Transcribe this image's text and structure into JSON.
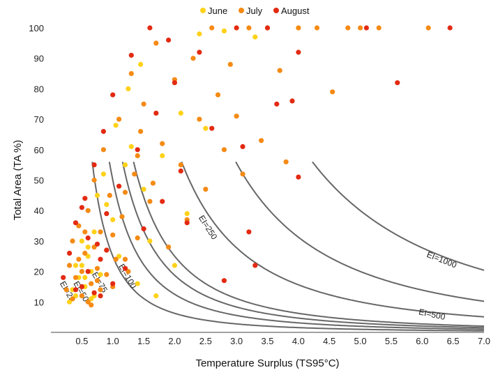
{
  "chart_data": {
    "type": "scatter",
    "title": "",
    "xlabel": "Temperature Surplus (TS95°C)",
    "ylabel": "Total Area  (TA %)",
    "xlim": [
      0,
      7.0
    ],
    "ylim": [
      0,
      100
    ],
    "x_ticks": [
      "0.5",
      "1.0",
      "1.5",
      "2.0",
      "2.5",
      "3.0",
      "3.5",
      "4.0",
      "4.5",
      "5.0",
      "5.5",
      "6.0",
      "6.5",
      "7.0"
    ],
    "y_ticks": [
      "10",
      "20",
      "30",
      "40",
      "50",
      "60",
      "70",
      "80",
      "90",
      "100"
    ],
    "grid": false,
    "legend_position": "top",
    "series": [
      {
        "name": "June",
        "color": "#FFD21A",
        "points": [
          [
            0.3,
            10
          ],
          [
            0.35,
            14
          ],
          [
            0.4,
            12
          ],
          [
            0.45,
            18
          ],
          [
            0.5,
            22
          ],
          [
            0.55,
            15
          ],
          [
            0.6,
            28
          ],
          [
            0.65,
            11
          ],
          [
            0.7,
            33
          ],
          [
            0.8,
            19
          ],
          [
            0.9,
            42
          ],
          [
            1.0,
            37
          ],
          [
            1.1,
            25
          ],
          [
            1.2,
            55
          ],
          [
            1.3,
            61
          ],
          [
            1.4,
            16
          ],
          [
            1.5,
            47
          ],
          [
            1.6,
            30
          ],
          [
            1.7,
            12
          ],
          [
            1.8,
            58
          ],
          [
            2.0,
            22
          ],
          [
            2.1,
            72
          ],
          [
            2.2,
            39
          ],
          [
            2.4,
            98
          ],
          [
            2.5,
            67
          ],
          [
            2.8,
            99
          ],
          [
            3.0,
            100
          ],
          [
            3.3,
            97
          ],
          [
            4.0,
            100
          ],
          [
            0.6,
            25
          ],
          [
            0.7,
            12
          ],
          [
            0.5,
            30
          ],
          [
            0.4,
            22
          ],
          [
            0.75,
            45
          ],
          [
            0.85,
            52
          ],
          [
            1.05,
            68
          ],
          [
            1.25,
            80
          ],
          [
            1.45,
            88
          ],
          [
            0.55,
            18
          ],
          [
            0.65,
            20
          ]
        ]
      },
      {
        "name": "July",
        "color": "#F58A14",
        "points": [
          [
            0.25,
            14
          ],
          [
            0.3,
            22
          ],
          [
            0.35,
            30
          ],
          [
            0.4,
            18
          ],
          [
            0.45,
            35
          ],
          [
            0.5,
            12
          ],
          [
            0.55,
            26
          ],
          [
            0.6,
            40
          ],
          [
            0.65,
            16
          ],
          [
            0.7,
            50
          ],
          [
            0.75,
            21
          ],
          [
            0.8,
            33
          ],
          [
            0.85,
            60
          ],
          [
            0.9,
            27
          ],
          [
            0.95,
            45
          ],
          [
            1.0,
            15
          ],
          [
            1.1,
            70
          ],
          [
            1.15,
            38
          ],
          [
            1.2,
            24
          ],
          [
            1.3,
            85
          ],
          [
            1.35,
            52
          ],
          [
            1.4,
            31
          ],
          [
            1.5,
            75
          ],
          [
            1.6,
            43
          ],
          [
            1.7,
            95
          ],
          [
            1.8,
            62
          ],
          [
            1.9,
            28
          ],
          [
            2.0,
            83
          ],
          [
            2.1,
            55
          ],
          [
            2.2,
            37
          ],
          [
            2.3,
            90
          ],
          [
            2.4,
            70
          ],
          [
            2.5,
            47
          ],
          [
            2.6,
            100
          ],
          [
            2.7,
            78
          ],
          [
            2.8,
            60
          ],
          [
            2.9,
            88
          ],
          [
            3.0,
            71
          ],
          [
            3.1,
            52
          ],
          [
            3.2,
            100
          ],
          [
            3.4,
            63
          ],
          [
            3.5,
            100
          ],
          [
            3.7,
            86
          ],
          [
            3.8,
            56
          ],
          [
            4.0,
            100
          ],
          [
            4.3,
            100
          ],
          [
            4.55,
            79
          ],
          [
            4.8,
            100
          ],
          [
            5.0,
            100
          ],
          [
            5.3,
            100
          ],
          [
            6.1,
            100
          ],
          [
            0.5,
            20
          ],
          [
            0.6,
            10
          ],
          [
            0.7,
            28
          ],
          [
            0.8,
            14
          ],
          [
            0.9,
            19
          ],
          [
            1.0,
            32
          ],
          [
            1.2,
            46
          ],
          [
            1.4,
            58
          ],
          [
            0.45,
            24
          ],
          [
            0.55,
            33
          ],
          [
            0.65,
            9
          ],
          [
            0.75,
            17
          ],
          [
            0.35,
            11
          ],
          [
            1.05,
            24
          ],
          [
            1.25,
            20
          ],
          [
            1.45,
            66
          ],
          [
            1.65,
            49
          ]
        ]
      },
      {
        "name": "August",
        "color": "#E32A12",
        "points": [
          [
            0.2,
            18
          ],
          [
            0.3,
            26
          ],
          [
            0.4,
            36
          ],
          [
            0.5,
            15
          ],
          [
            0.55,
            44
          ],
          [
            0.6,
            20
          ],
          [
            0.7,
            55
          ],
          [
            0.75,
            29
          ],
          [
            0.8,
            12
          ],
          [
            0.85,
            66
          ],
          [
            0.9,
            39
          ],
          [
            1.0,
            78
          ],
          [
            1.1,
            48
          ],
          [
            1.2,
            21
          ],
          [
            1.3,
            91
          ],
          [
            1.4,
            60
          ],
          [
            1.5,
            34
          ],
          [
            1.6,
            100
          ],
          [
            1.7,
            72
          ],
          [
            1.8,
            43
          ],
          [
            1.9,
            96
          ],
          [
            2.0,
            82
          ],
          [
            2.1,
            53
          ],
          [
            2.2,
            36
          ],
          [
            2.4,
            92
          ],
          [
            2.6,
            67
          ],
          [
            2.8,
            17
          ],
          [
            3.0,
            100
          ],
          [
            3.1,
            61
          ],
          [
            3.2,
            33
          ],
          [
            3.3,
            22
          ],
          [
            3.5,
            100
          ],
          [
            3.65,
            75
          ],
          [
            3.9,
            76
          ],
          [
            4.0,
            92
          ],
          [
            4.0,
            51
          ],
          [
            5.1,
            100
          ],
          [
            5.6,
            82
          ],
          [
            6.45,
            100
          ],
          [
            0.4,
            14
          ],
          [
            0.6,
            31
          ],
          [
            0.8,
            24
          ],
          [
            1.0,
            16
          ],
          [
            0.5,
            41
          ],
          [
            0.7,
            13
          ],
          [
            0.9,
            27
          ]
        ]
      }
    ],
    "curves": [
      {
        "label": "EI=25",
        "k": 0.25
      },
      {
        "label": "EI=50",
        "k": 0.5
      },
      {
        "label": "EI=75",
        "k": 0.75
      },
      {
        "label": "EI=100",
        "k": 1.0
      },
      {
        "label": "EI=250",
        "k": 2.5
      },
      {
        "label": "EI=500",
        "k": 5.0
      },
      {
        "label": "EI=1000",
        "k": 10.0
      }
    ]
  }
}
